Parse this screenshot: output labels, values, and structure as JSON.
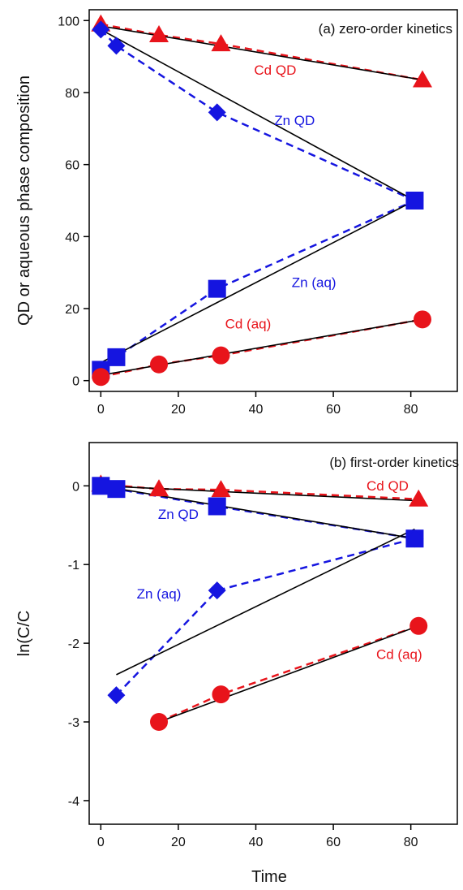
{
  "chart_data": [
    {
      "type": "scatter",
      "panel_label": "(a) zero-order kinetics",
      "xlabel": "",
      "ylabel": "QD or aqueous phase composition",
      "xlim": [
        -3,
        92
      ],
      "ylim": [
        -3,
        103
      ],
      "x_ticks": [
        0,
        20,
        40,
        60,
        80
      ],
      "y_ticks": [
        0,
        20,
        40,
        60,
        80,
        100
      ],
      "colors": {
        "cd": "#e8141b",
        "zn": "#1515e0",
        "fit": "#000000"
      },
      "series": [
        {
          "name": "Cd QD",
          "color": "#e8141b",
          "marker": "triangle",
          "points": [
            [
              0,
              99
            ],
            [
              15,
              96
            ],
            [
              31,
              93.5
            ],
            [
              83,
              83.5
            ]
          ],
          "fit": [
            [
              0,
              98.5
            ],
            [
              83,
              83.5
            ]
          ]
        },
        {
          "name": "Zn QD",
          "color": "#1515e0",
          "marker": "diamond",
          "points": [
            [
              0,
              97.5
            ],
            [
              4,
              93
            ],
            [
              30,
              74.5
            ],
            [
              81,
              50
            ]
          ],
          "fit": [
            [
              0,
              97.5
            ],
            [
              81,
              50
            ]
          ]
        },
        {
          "name": "Zn (aq)",
          "color": "#1515e0",
          "marker": "square",
          "points": [
            [
              0,
              3
            ],
            [
              4,
              6.5
            ],
            [
              30,
              25.5
            ],
            [
              81,
              50
            ]
          ],
          "fit": [
            [
              0,
              5
            ],
            [
              81,
              50
            ]
          ]
        },
        {
          "name": "Cd (aq)",
          "color": "#e8141b",
          "marker": "circle",
          "points": [
            [
              0,
              1
            ],
            [
              15,
              4.5
            ],
            [
              31,
              7
            ],
            [
              83,
              17
            ]
          ],
          "fit": [
            [
              0,
              1.5
            ],
            [
              83,
              17
            ]
          ]
        }
      ],
      "annotations": [
        {
          "text": "Cd QD",
          "color": "#e8141b",
          "x": 45,
          "y": 85
        },
        {
          "text": "Zn QD",
          "color": "#1515e0",
          "x": 50,
          "y": 71
        },
        {
          "text": "Zn (aq)",
          "color": "#1515e0",
          "x": 55,
          "y": 26
        },
        {
          "text": "Cd (aq)",
          "color": "#e8141b",
          "x": 38,
          "y": 14.5
        }
      ]
    },
    {
      "type": "scatter",
      "panel_label": "(b) first-order kinetics",
      "xlabel": "Time",
      "ylabel": "ln(C/C",
      "xlim": [
        -3,
        92
      ],
      "ylim": [
        -4.3,
        0.55
      ],
      "x_ticks": [
        0,
        20,
        40,
        60,
        80
      ],
      "y_ticks": [
        0,
        -1,
        -2,
        -3,
        -4
      ],
      "colors": {
        "cd": "#e8141b",
        "zn": "#1515e0",
        "fit": "#000000"
      },
      "series": [
        {
          "name": "Cd QD",
          "color": "#e8141b",
          "marker": "triangle",
          "points": [
            [
              0,
              0.02
            ],
            [
              15,
              -0.04
            ],
            [
              31,
              -0.05
            ],
            [
              82,
              -0.17
            ]
          ],
          "fit": [
            [
              0,
              0
            ],
            [
              82,
              -0.19
            ]
          ]
        },
        {
          "name": "Zn QD",
          "color": "#1515e0",
          "marker": "square",
          "points": [
            [
              0,
              0
            ],
            [
              4,
              -0.04
            ],
            [
              30,
              -0.26
            ],
            [
              81,
              -0.67
            ]
          ],
          "fit": [
            [
              0,
              0
            ],
            [
              81,
              -0.67
            ]
          ]
        },
        {
          "name": "Zn (aq)",
          "color": "#1515e0",
          "marker": "diamond",
          "points": [
            [
              4,
              -2.66
            ],
            [
              30,
              -1.33
            ],
            [
              81,
              -0.67
            ]
          ],
          "fit": [
            [
              4,
              -2.4
            ],
            [
              81,
              -0.55
            ]
          ]
        },
        {
          "name": "Cd (aq)",
          "color": "#e8141b",
          "marker": "circle",
          "points": [
            [
              15,
              -3.0
            ],
            [
              31,
              -2.65
            ],
            [
              82,
              -1.78
            ]
          ],
          "fit": [
            [
              15,
              -3.0
            ],
            [
              82,
              -1.78
            ]
          ]
        }
      ],
      "annotations": [
        {
          "text": "Cd QD",
          "color": "#e8141b",
          "x": 74,
          "y": -0.06
        },
        {
          "text": "Zn QD",
          "color": "#1515e0",
          "x": 20,
          "y": -0.42
        },
        {
          "text": "Zn (aq)",
          "color": "#1515e0",
          "x": 15,
          "y": -1.43
        },
        {
          "text": "Cd (aq)",
          "color": "#e8141b",
          "x": 77,
          "y": -2.2
        }
      ]
    }
  ]
}
